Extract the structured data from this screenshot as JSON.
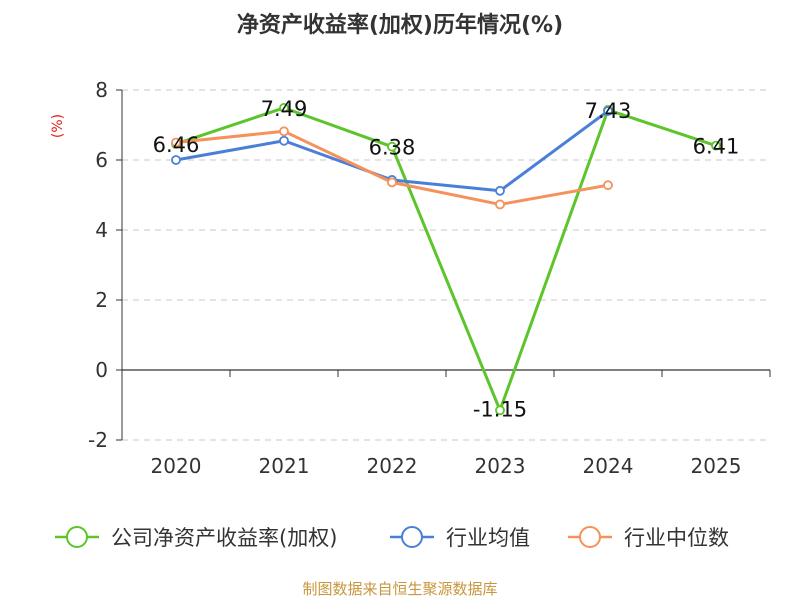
{
  "chart_data": {
    "type": "line",
    "title": "净资产收益率(加权)历年情况(%)",
    "xlabel": "",
    "ylabel": "(%)",
    "categories": [
      "2020",
      "2021",
      "2022",
      "2023",
      "2024",
      "2025"
    ],
    "ylim": [
      -2,
      8
    ],
    "yticks": [
      -2,
      0,
      2,
      4,
      6,
      8
    ],
    "grid": true,
    "legend_position": "bottom",
    "series": [
      {
        "name": "公司净资产收益率(加权)",
        "color": "#5cc52b",
        "values": [
          6.46,
          7.49,
          6.38,
          -1.15,
          7.43,
          6.41
        ],
        "labels": [
          "6.46",
          "7.49",
          "6.38",
          "-1.15",
          "7.43",
          "6.41"
        ]
      },
      {
        "name": "行业均值",
        "color": "#4a7fd9",
        "values": [
          6.0,
          6.55,
          5.43,
          5.12,
          7.4,
          null
        ]
      },
      {
        "name": "行业中位数",
        "color": "#f5915a",
        "values": [
          6.5,
          6.82,
          5.36,
          4.73,
          5.28,
          null
        ]
      }
    ],
    "source": "制图数据来自恒生聚源数据库"
  }
}
